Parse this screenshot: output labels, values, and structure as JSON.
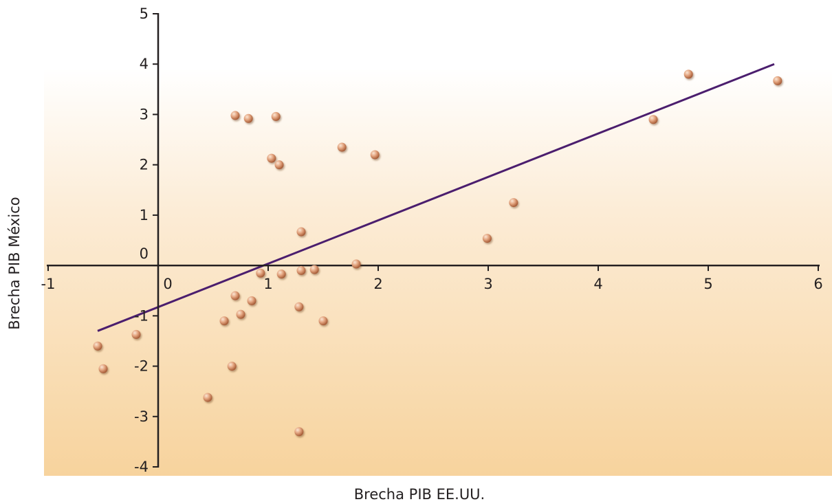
{
  "chart_data": {
    "type": "scatter",
    "title": "",
    "xlabel": "Brecha PIB EE.UU.",
    "ylabel": "Brecha PIB México",
    "xlim": [
      -1,
      6
    ],
    "ylim": [
      -4,
      5
    ],
    "xticks": [
      -1,
      0,
      1,
      2,
      3,
      4,
      5,
      6
    ],
    "yticks": [
      -4,
      -3,
      -2,
      -1,
      0,
      1,
      2,
      3,
      4,
      5
    ],
    "grid": false,
    "legend": "none",
    "series": [
      {
        "points": [
          [
            -0.55,
            -1.6
          ],
          [
            -0.5,
            -2.05
          ],
          [
            -0.2,
            -1.37
          ],
          [
            0.45,
            -2.62
          ],
          [
            0.6,
            -1.1
          ],
          [
            0.67,
            -2.0
          ],
          [
            0.7,
            -0.6
          ],
          [
            0.7,
            2.98
          ],
          [
            0.75,
            -0.97
          ],
          [
            0.82,
            2.92
          ],
          [
            0.85,
            -0.7
          ],
          [
            0.93,
            -0.15
          ],
          [
            1.03,
            2.13
          ],
          [
            1.07,
            2.96
          ],
          [
            1.1,
            2.0
          ],
          [
            1.12,
            -0.17
          ],
          [
            1.28,
            -0.82
          ],
          [
            1.28,
            -3.3
          ],
          [
            1.3,
            -0.1
          ],
          [
            1.3,
            0.67
          ],
          [
            1.42,
            -0.08
          ],
          [
            1.5,
            -1.1
          ],
          [
            1.67,
            2.35
          ],
          [
            1.8,
            0.03
          ],
          [
            1.97,
            2.2
          ],
          [
            2.99,
            0.54
          ],
          [
            3.23,
            1.25
          ],
          [
            4.5,
            2.9
          ],
          [
            4.82,
            3.8
          ],
          [
            5.63,
            3.67
          ]
        ]
      }
    ],
    "trendline": {
      "x": [
        -0.55,
        5.6
      ],
      "y": [
        -1.3,
        4.0
      ]
    },
    "colors": {
      "point_fill": "#c9764b",
      "point_highlight": "#fbe6d4",
      "trendline": "#4b1e6e",
      "axis": "#231f20",
      "bg_top": "#ffffff",
      "bg_bottom": "#f7d39d"
    }
  }
}
